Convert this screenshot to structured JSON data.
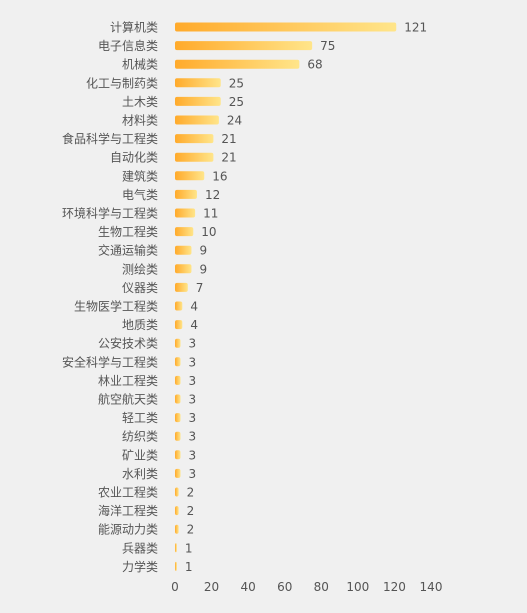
{
  "chart_data": {
    "type": "bar",
    "orientation": "horizontal",
    "categories": [
      "计算机类",
      "电子信息类",
      "机械类",
      "化工与制药类",
      "土木类",
      "材料类",
      "食品科学与工程类",
      "自动化类",
      "建筑类",
      "电气类",
      "环境科学与工程类",
      "生物工程类",
      "交通运输类",
      "测绘类",
      "仪器类",
      "生物医学工程类",
      "地质类",
      "公安技术类",
      "安全科学与工程类",
      "林业工程类",
      "航空航天类",
      "轻工类",
      "纺织类",
      "矿业类",
      "水利类",
      "农业工程类",
      "海洋工程类",
      "能源动力类",
      "兵器类",
      "力学类"
    ],
    "values": [
      121,
      75,
      68,
      25,
      25,
      24,
      21,
      21,
      16,
      12,
      11,
      10,
      9,
      9,
      7,
      4,
      4,
      3,
      3,
      3,
      3,
      3,
      3,
      3,
      3,
      2,
      2,
      2,
      1,
      1
    ],
    "xlim": [
      0,
      140
    ],
    "xticks": [
      0,
      20,
      40,
      60,
      80,
      100,
      120,
      140
    ],
    "title": "",
    "xlabel": "",
    "ylabel": "",
    "grid": false,
    "bar_color_start": "#ffaa2b",
    "bar_color_end": "#ffe58a"
  }
}
